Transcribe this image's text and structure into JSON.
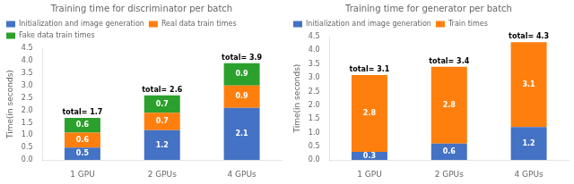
{
  "chart_data": [
    {
      "type": "bar",
      "title": "Training time for discriminator per batch",
      "ylabel": "Time(in seconds)",
      "categories": [
        "1 GPU",
        "2 GPUs",
        "4 GPUs"
      ],
      "series": [
        {
          "name": "Initialization and image generation",
          "color": "#4472c4",
          "values": [
            0.5,
            1.2,
            2.1
          ]
        },
        {
          "name": "Real data train times",
          "color": "#ff7f0e",
          "values": [
            0.6,
            0.7,
            0.9
          ]
        },
        {
          "name": "Fake data train times",
          "color": "#2ca02c",
          "values": [
            0.6,
            0.7,
            0.9
          ]
        }
      ],
      "stacked": true,
      "data_labels": true,
      "annotations": [
        {
          "text": "total= 1.7",
          "x": "1 GPU",
          "y": 1.7
        },
        {
          "text": "total= 2.6",
          "x": "2 GPUs",
          "y": 2.6
        },
        {
          "text": "total= 3.9",
          "x": "4 GPUs",
          "y": 3.9
        }
      ],
      "ylim": [
        0,
        4.5
      ],
      "yticks": [
        {
          "value": 0,
          "label": "0.0"
        },
        0.5,
        {
          "value": 1,
          "label": "1.0"
        },
        1.5,
        {
          "value": 2,
          "label": "2.0"
        },
        2.5,
        {
          "value": 3,
          "label": "3.0"
        },
        3.5,
        {
          "value": 4,
          "label": "4.0"
        },
        4.5
      ],
      "grid": false,
      "legend": "upper left"
    },
    {
      "type": "bar",
      "title": "Training time for generator per batch",
      "ylabel": "Time(in seconds)",
      "categories": [
        "1 GPU",
        "2 GPUs",
        "4 GPUs"
      ],
      "series": [
        {
          "name": "Initialization and image generation",
          "color": "#4472c4",
          "values": [
            0.3,
            0.6,
            1.2
          ]
        },
        {
          "name": "Train times",
          "color": "#ff7f0e",
          "values": [
            2.8,
            2.8,
            3.1
          ]
        }
      ],
      "stacked": true,
      "data_labels": true,
      "annotations": [
        {
          "text": "total= 3.1",
          "x": "1 GPU",
          "y": 3.1
        },
        {
          "text": "total= 3.4",
          "x": "2 GPUs",
          "y": 3.4
        },
        {
          "text": "total= 4.3",
          "x": "4 GPUs",
          "y": 4.3
        }
      ],
      "ylim": [
        0,
        4.5
      ],
      "yticks": [
        {
          "value": 0,
          "label": "0.0"
        },
        0.5,
        {
          "value": 1,
          "label": "1.0"
        },
        1.5,
        {
          "value": 2,
          "label": "2.0"
        },
        2.5,
        {
          "value": 3,
          "label": "3.0"
        },
        3.5,
        {
          "value": 4,
          "label": "4.0"
        },
        4.5
      ],
      "grid": false,
      "legend": "upper left"
    }
  ]
}
